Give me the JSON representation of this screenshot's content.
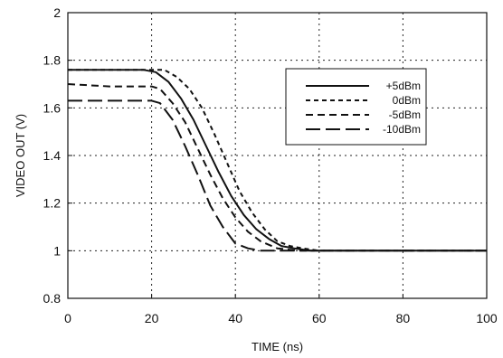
{
  "chart_data": {
    "type": "line",
    "xlabel": "TIME (ns)",
    "ylabel": "VIDEO OUT (V)",
    "xlim": [
      0,
      100
    ],
    "ylim": [
      0.8,
      2
    ],
    "xticks": [
      0,
      20,
      40,
      60,
      80,
      100
    ],
    "yticks": [
      0.8,
      1,
      1.2,
      1.4,
      1.6,
      1.8,
      2
    ],
    "grid": true,
    "legend_position": "top-right",
    "series": [
      {
        "name": "+5dBm",
        "dash": "solid",
        "x": [
          0,
          10,
          18,
          21,
          24,
          27,
          30,
          33,
          36,
          39,
          42,
          45,
          48,
          51,
          54,
          58,
          62,
          70,
          80,
          100
        ],
        "y": [
          1.76,
          1.76,
          1.76,
          1.75,
          1.71,
          1.64,
          1.55,
          1.44,
          1.33,
          1.23,
          1.15,
          1.09,
          1.05,
          1.02,
          1.01,
          1.0,
          1.0,
          1.0,
          1.0,
          1.0
        ]
      },
      {
        "name": "0dBm",
        "dash": "short",
        "x": [
          0,
          10,
          20,
          23,
          26,
          29,
          32,
          35,
          38,
          41,
          44,
          47,
          50,
          53,
          56,
          60,
          70,
          80,
          100
        ],
        "y": [
          1.76,
          1.76,
          1.76,
          1.76,
          1.73,
          1.68,
          1.6,
          1.49,
          1.37,
          1.25,
          1.16,
          1.09,
          1.04,
          1.02,
          1.01,
          1.0,
          1.0,
          1.0,
          1.0
        ]
      },
      {
        "name": "-5dBm",
        "dash": "medium",
        "x": [
          0,
          10,
          18,
          20,
          22,
          25,
          28,
          31,
          34,
          37,
          40,
          43,
          46,
          50,
          55,
          60,
          80,
          100
        ],
        "y": [
          1.7,
          1.69,
          1.69,
          1.69,
          1.68,
          1.62,
          1.54,
          1.43,
          1.32,
          1.22,
          1.14,
          1.08,
          1.04,
          1.01,
          1.0,
          1.0,
          1.0,
          1.0
        ]
      },
      {
        "name": "-10dBm",
        "dash": "long",
        "x": [
          0,
          10,
          20,
          22,
          25,
          28,
          31,
          34,
          37,
          40,
          43,
          46,
          50,
          55,
          60,
          80,
          100
        ],
        "y": [
          1.63,
          1.63,
          1.63,
          1.62,
          1.55,
          1.44,
          1.32,
          1.19,
          1.1,
          1.03,
          1.01,
          1.0,
          1.0,
          1.0,
          1.0,
          1.0,
          1.0
        ]
      }
    ]
  }
}
